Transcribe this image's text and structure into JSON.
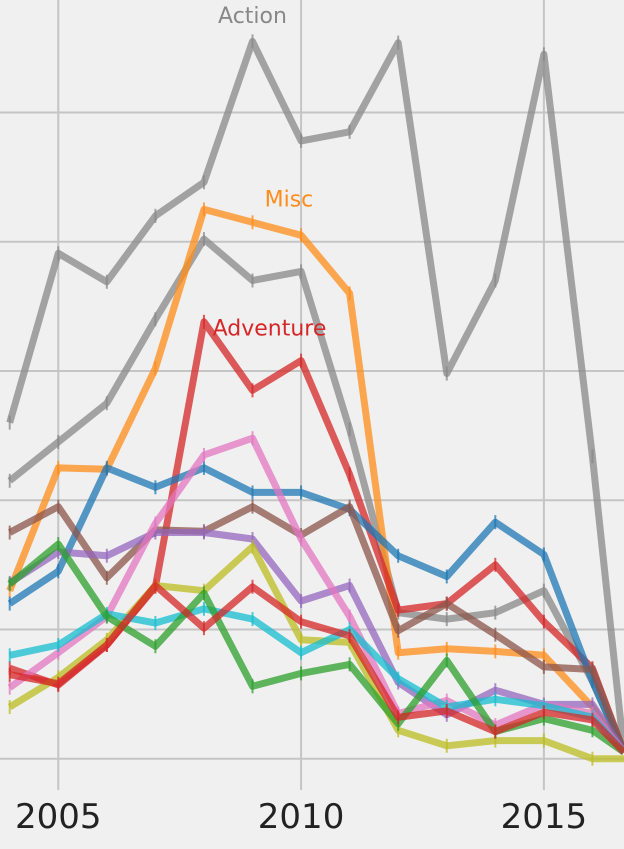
{
  "chart_data": {
    "type": "line",
    "xlabel": "",
    "ylabel": "",
    "xlim": [
      2003.8,
      2016.65
    ],
    "ylim": [
      -0.01,
      5.87
    ],
    "x_ticks": [
      2005,
      2010,
      2015
    ],
    "x_tick_labels": [
      "2005",
      "2010",
      "2015"
    ],
    "y_gridlines": [
      0,
      1,
      2,
      3,
      4,
      5
    ],
    "grid": true,
    "series": [
      {
        "color": "#888888",
        "x": [
          2004,
          2005,
          2006,
          2007,
          2008,
          2009,
          2010,
          2011,
          2012,
          2013,
          2014,
          2015,
          2016,
          2016.65
        ],
        "values": [
          2.6,
          3.91,
          3.69,
          4.2,
          4.46,
          5.55,
          4.78,
          4.85,
          5.54,
          2.98,
          3.7,
          5.45,
          2.34,
          0.05
        ]
      },
      {
        "color": "#888888",
        "x": [
          2004,
          2005,
          2006,
          2007,
          2008,
          2009,
          2010,
          2011,
          2012,
          2013,
          2014,
          2015,
          2016,
          2016.65
        ],
        "values": [
          2.15,
          2.45,
          2.75,
          3.4,
          4.02,
          3.7,
          3.77,
          2.55,
          1.13,
          1.08,
          1.13,
          1.3,
          0.6,
          0.05
        ]
      },
      {
        "name": "Misc",
        "color": "#ff8c1a",
        "x": [
          2004,
          2005,
          2006,
          2007,
          2008,
          2009,
          2010,
          2011,
          2012,
          2013,
          2014,
          2015,
          2016,
          2016.65
        ],
        "values": [
          1.3,
          2.25,
          2.24,
          3.02,
          4.25,
          4.15,
          4.05,
          3.6,
          0.82,
          0.85,
          0.83,
          0.8,
          0.4,
          0.05
        ]
      },
      {
        "name": "Adventure",
        "color": "#d62728",
        "x": [
          2004,
          2005,
          2006,
          2007,
          2008,
          2009,
          2010,
          2011,
          2012,
          2013,
          2014,
          2015,
          2016,
          2016.65
        ],
        "values": [
          0.7,
          0.57,
          0.88,
          1.33,
          3.38,
          2.85,
          3.08,
          2.2,
          1.15,
          1.2,
          1.5,
          1.06,
          0.7,
          0.05
        ]
      },
      {
        "color": "#1f77b4",
        "x": [
          2004,
          2005,
          2006,
          2007,
          2008,
          2009,
          2010,
          2011,
          2012,
          2013,
          2014,
          2015,
          2016,
          2016.65
        ],
        "values": [
          1.2,
          1.45,
          2.25,
          2.1,
          2.25,
          2.06,
          2.06,
          1.93,
          1.57,
          1.41,
          1.83,
          1.58,
          0.6,
          0.05
        ]
      },
      {
        "color": "#8c564b",
        "x": [
          2004,
          2005,
          2006,
          2007,
          2008,
          2009,
          2010,
          2011,
          2012,
          2013,
          2014,
          2015,
          2016,
          2016.65
        ],
        "values": [
          1.75,
          1.95,
          1.4,
          1.77,
          1.76,
          1.95,
          1.73,
          1.95,
          0.99,
          1.2,
          0.96,
          0.71,
          0.69,
          0.05
        ]
      },
      {
        "color": "#9467bd",
        "x": [
          2004,
          2005,
          2006,
          2007,
          2008,
          2009,
          2010,
          2011,
          2012,
          2013,
          2014,
          2015,
          2016,
          2016.65
        ],
        "values": [
          1.36,
          1.6,
          1.57,
          1.75,
          1.75,
          1.7,
          1.22,
          1.34,
          0.59,
          0.34,
          0.53,
          0.42,
          0.42,
          0.05
        ]
      },
      {
        "color": "#e377c2",
        "x": [
          2004,
          2005,
          2006,
          2007,
          2008,
          2009,
          2010,
          2011,
          2012,
          2013,
          2014,
          2015,
          2016,
          2016.65
        ],
        "values": [
          0.55,
          0.82,
          1.1,
          1.82,
          2.35,
          2.48,
          1.7,
          1.1,
          0.35,
          0.45,
          0.26,
          0.42,
          0.35,
          0.05
        ]
      },
      {
        "color": "#bcbd22",
        "x": [
          2004,
          2005,
          2006,
          2007,
          2008,
          2009,
          2010,
          2011,
          2012,
          2013,
          2014,
          2015,
          2016,
          2016.65
        ],
        "values": [
          0.4,
          0.63,
          0.92,
          1.34,
          1.3,
          1.64,
          0.92,
          0.9,
          0.22,
          0.1,
          0.14,
          0.14,
          0.0,
          0.0
        ]
      },
      {
        "color": "#17becf",
        "x": [
          2004,
          2005,
          2006,
          2007,
          2008,
          2009,
          2010,
          2011,
          2012,
          2013,
          2014,
          2015,
          2016,
          2016.65
        ],
        "values": [
          0.8,
          0.88,
          1.12,
          1.05,
          1.16,
          1.08,
          0.82,
          1.0,
          0.62,
          0.4,
          0.46,
          0.41,
          0.32,
          0.05
        ]
      },
      {
        "color": "#2ca02c",
        "x": [
          2004,
          2005,
          2006,
          2007,
          2008,
          2009,
          2010,
          2011,
          2012,
          2013,
          2014,
          2015,
          2016,
          2016.65
        ],
        "values": [
          1.35,
          1.66,
          1.1,
          0.87,
          1.28,
          0.56,
          0.66,
          0.73,
          0.27,
          0.76,
          0.21,
          0.31,
          0.22,
          0.05
        ]
      },
      {
        "color": "#d62728",
        "x": [
          2004,
          2005,
          2006,
          2007,
          2008,
          2009,
          2010,
          2011,
          2012,
          2013,
          2014,
          2015,
          2016,
          2016.65
        ],
        "values": [
          0.65,
          0.58,
          0.88,
          1.34,
          1.01,
          1.33,
          1.06,
          0.95,
          0.32,
          0.37,
          0.21,
          0.36,
          0.3,
          0.05
        ]
      }
    ],
    "annotations": [
      {
        "text": "Action",
        "x": 2009.0,
        "y": 5.74,
        "color": "#888888"
      },
      {
        "text": "Misc",
        "x": 2009.75,
        "y": 4.32,
        "color": "#ff8c1a"
      },
      {
        "text": "Adventure",
        "x": 2009.35,
        "y": 3.32,
        "color": "#d62728"
      }
    ]
  }
}
